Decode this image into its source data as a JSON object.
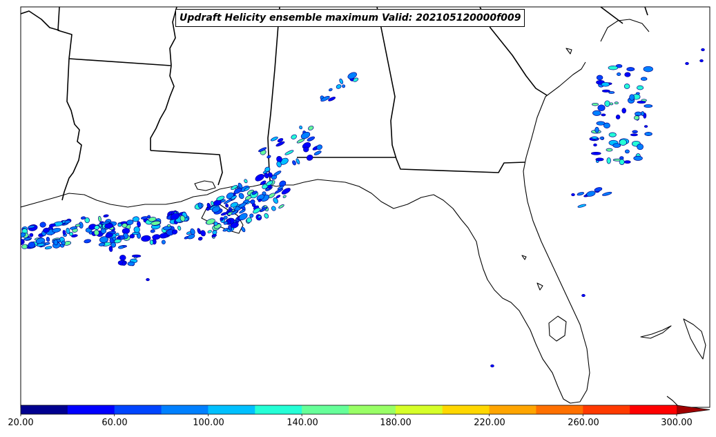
{
  "title": "Updraft Helicity ensemble maximum Valid: 202105120000f009",
  "colorbar": {
    "ticks": [
      "20.00",
      "60.00",
      "100.00",
      "140.00",
      "180.00",
      "220.00",
      "260.00",
      "300.00"
    ],
    "colors": [
      "#00008f",
      "#0000ff",
      "#0045ff",
      "#0080ff",
      "#00c0ff",
      "#25ffd6",
      "#66ff99",
      "#99ff66",
      "#d6ff29",
      "#ffd700",
      "#ffa500",
      "#ff7000",
      "#ff3a00",
      "#ff0000",
      "#a00000"
    ],
    "extend": "max"
  }
}
